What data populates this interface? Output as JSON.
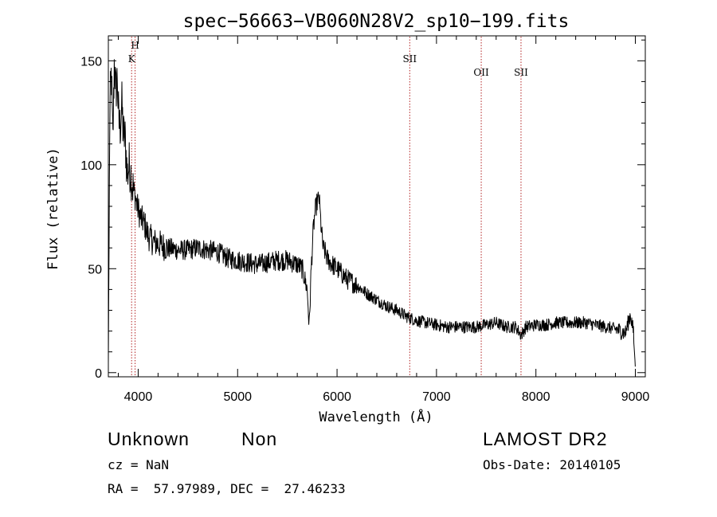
{
  "chart_data": {
    "type": "line",
    "title": "spec−56663−VB060N28V2_sp10−199.fits",
    "xlabel": "Wavelength (Å)",
    "ylabel": "Flux (relative)",
    "xlim": [
      3700,
      9100
    ],
    "ylim": [
      -2,
      162
    ],
    "xticks": [
      4000,
      5000,
      6000,
      7000,
      8000,
      9000
    ],
    "yticks": [
      0,
      50,
      100,
      150
    ],
    "grid": false,
    "line_color": "#000000",
    "marker_color": "#b22222",
    "spectrum_anchors": {
      "x": [
        3700,
        3715,
        3730,
        3745,
        3760,
        3775,
        3790,
        3805,
        3820,
        3835,
        3850,
        3870,
        3890,
        3910,
        3930,
        3950,
        3970,
        3990,
        4010,
        4030,
        4060,
        4100,
        4150,
        4200,
        4300,
        4400,
        4500,
        4600,
        4700,
        4800,
        4900,
        5000,
        5100,
        5200,
        5300,
        5400,
        5500,
        5600,
        5650,
        5700,
        5720,
        5740,
        5760,
        5780,
        5800,
        5820,
        5840,
        5860,
        5880,
        5900,
        5950,
        6000,
        6100,
        6200,
        6300,
        6400,
        6500,
        6600,
        6700,
        6800,
        6900,
        7000,
        7100,
        7200,
        7300,
        7400,
        7500,
        7600,
        7700,
        7800,
        7850,
        7900,
        8000,
        8100,
        8200,
        8300,
        8400,
        8500,
        8600,
        8700,
        8800,
        8850,
        8900,
        8950,
        8980,
        9000
      ],
      "y": [
        5,
        125,
        145,
        110,
        150,
        135,
        142,
        120,
        118,
        130,
        115,
        112,
        95,
        100,
        95,
        88,
        85,
        80,
        77,
        74,
        72,
        66,
        63,
        62,
        60,
        59,
        59,
        60,
        59,
        58,
        55,
        54,
        53,
        52,
        53,
        54,
        54,
        52,
        50,
        40,
        22,
        50,
        68,
        78,
        82,
        84,
        70,
        60,
        58,
        55,
        52,
        50,
        45,
        42,
        38,
        35,
        32,
        30,
        27,
        25,
        24,
        23,
        22,
        22,
        22,
        22,
        23,
        24,
        22,
        22,
        18,
        22,
        23,
        23,
        24,
        24,
        24,
        24,
        23,
        22,
        21,
        20,
        19,
        28,
        20,
        2
      ]
    },
    "lines": [
      {
        "name": "K",
        "x": 3934
      },
      {
        "name": "H",
        "x": 3969
      },
      {
        "name": "SII",
        "x": 6731
      },
      {
        "name": "OII",
        "x": 7450
      },
      {
        "name": "SII",
        "x": 7850
      }
    ]
  },
  "info": {
    "class": "Unknown",
    "subclass": "Non",
    "survey": "LAMOST DR2",
    "cz": "cz = NaN",
    "obsdate": "Obs-Date: 20140105",
    "radec": "RA =  57.97989, DEC =  27.46233"
  }
}
